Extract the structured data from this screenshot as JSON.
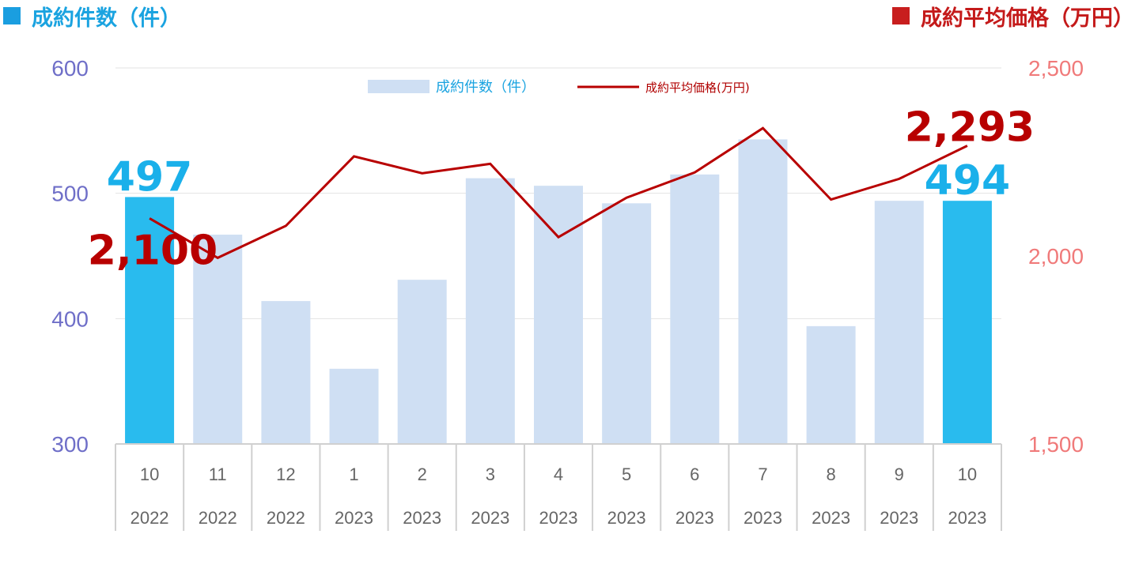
{
  "header": {
    "left_title": "成約件数（件）",
    "right_title": "成約平均価格（万円）"
  },
  "colors": {
    "bar_highlight": "#29bbee",
    "bar_normal": "#cfdff3",
    "line": "#b80000",
    "left_axis": "#6f6fc8",
    "right_axis": "#f07a7a"
  },
  "chart_data": {
    "type": "bar+line",
    "categories": [
      {
        "month": "10",
        "year": "2022"
      },
      {
        "month": "11",
        "year": "2022"
      },
      {
        "month": "12",
        "year": "2022"
      },
      {
        "month": "1",
        "year": "2023"
      },
      {
        "month": "2",
        "year": "2023"
      },
      {
        "month": "3",
        "year": "2023"
      },
      {
        "month": "4",
        "year": "2023"
      },
      {
        "month": "5",
        "year": "2023"
      },
      {
        "month": "6",
        "year": "2023"
      },
      {
        "month": "7",
        "year": "2023"
      },
      {
        "month": "8",
        "year": "2023"
      },
      {
        "month": "9",
        "year": "2023"
      },
      {
        "month": "10",
        "year": "2023"
      }
    ],
    "series": [
      {
        "name": "成約件数（件）",
        "type": "bar",
        "axis": "left",
        "values": [
          497,
          467,
          414,
          360,
          431,
          512,
          506,
          492,
          515,
          543,
          394,
          494,
          494
        ],
        "highlight": [
          0,
          12
        ]
      },
      {
        "name": "成約平均価格(万円)",
        "type": "line",
        "axis": "right",
        "values": [
          2100,
          1995,
          2080,
          2265,
          2220,
          2245,
          2050,
          2155,
          2222,
          2340,
          2150,
          2205,
          2293
        ]
      }
    ],
    "left_axis": {
      "min": 300,
      "max": 600,
      "ticks": [
        "300",
        "400",
        "500",
        "600"
      ]
    },
    "right_axis": {
      "min": 1500,
      "max": 2500,
      "ticks": [
        "1,500",
        "2,000",
        "2,500"
      ]
    },
    "data_labels": [
      {
        "series": 0,
        "index": 0,
        "text": "497"
      },
      {
        "series": 0,
        "index": 12,
        "text": "494"
      },
      {
        "series": 1,
        "index": 0,
        "text": "2,100"
      },
      {
        "series": 1,
        "index": 12,
        "text": "2,293"
      }
    ],
    "legend": {
      "placement": "top-center"
    },
    "grid": true
  }
}
